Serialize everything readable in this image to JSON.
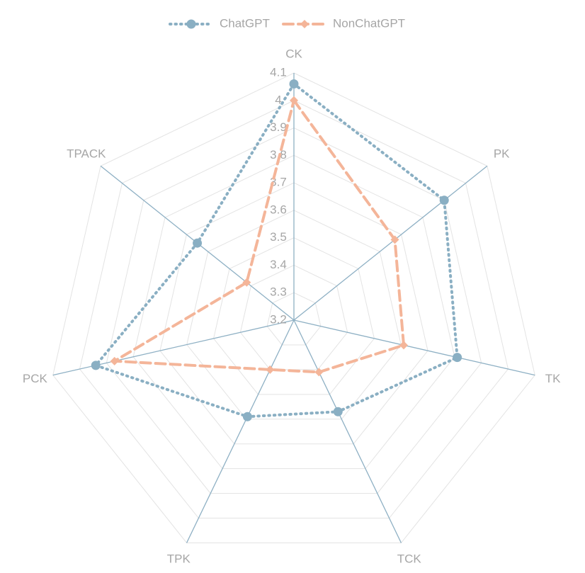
{
  "chart_data": {
    "type": "radar",
    "categories": [
      "CK",
      "PK",
      "TK",
      "TCK",
      "TPK",
      "PCK",
      "TPACK"
    ],
    "ylim": [
      3.2,
      4.1
    ],
    "yticks": [
      3.2,
      3.3,
      3.4,
      3.5,
      3.6,
      3.7,
      3.8,
      3.9,
      4,
      4.1
    ],
    "grid": true,
    "legend": "top",
    "series": [
      {
        "name": "ChatGPT",
        "color": "#8aafc3",
        "values": [
          4.06,
          3.9,
          3.81,
          3.57,
          3.59,
          3.94,
          3.65
        ]
      },
      {
        "name": "NonChatGPT",
        "color": "#f4b599",
        "values": [
          4.0,
          3.67,
          3.61,
          3.41,
          3.4,
          3.87,
          3.42
        ]
      }
    ]
  }
}
